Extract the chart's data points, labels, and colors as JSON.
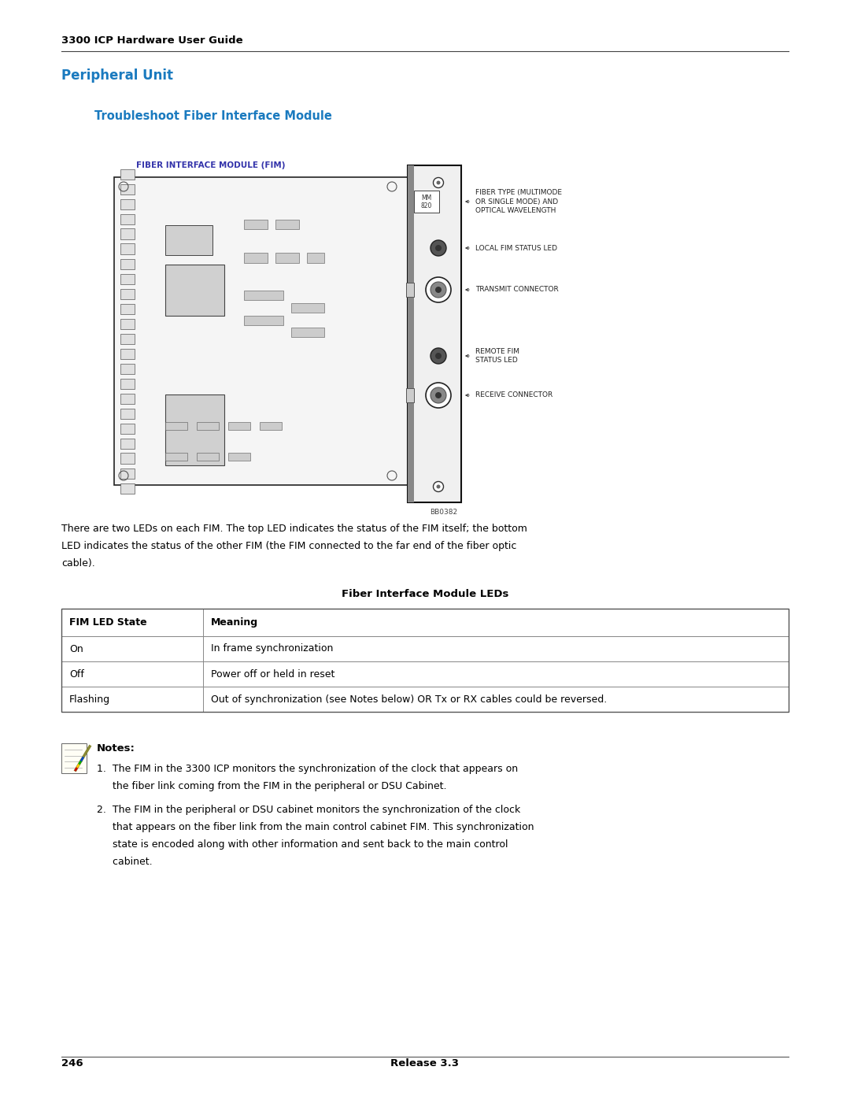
{
  "page_width": 10.8,
  "page_height": 13.97,
  "dpi": 100,
  "bg_color": "#ffffff",
  "header_text": "3300 ICP Hardware User Guide",
  "header_font_size": 9.5,
  "section_title": "Peripheral Unit",
  "section_title_color": "#1a7abf",
  "section_title_fontsize": 12,
  "subsection_title": "Troubleshoot Fiber Interface Module",
  "subsection_title_color": "#1a7abf",
  "subsection_title_fontsize": 10.5,
  "fim_label": "FIBER INTERFACE MODULE (FIM)",
  "fim_label_color": "#3333aa",
  "fim_label_fontsize": 7.5,
  "body_text1_line1": "There are two LEDs on each FIM. The top LED indicates the status of the FIM itself; the bottom",
  "body_text1_line2": "LED indicates the status of the other FIM (the FIM connected to the far end of the fiber optic",
  "body_text1_line3": "cable).",
  "body_fontsize": 9.0,
  "table_title": "Fiber Interface Module LEDs",
  "table_title_fontsize": 9.5,
  "table_header": [
    "FIM LED State",
    "Meaning"
  ],
  "table_rows": [
    [
      "On",
      "In frame synchronization"
    ],
    [
      "Off",
      "Power off or held in reset"
    ],
    [
      "Flashing",
      "Out of synchronization (see Notes below) OR Tx or RX cables could be reversed."
    ]
  ],
  "notes_title": "Notes:",
  "note1_line1": "1.  The FIM in the 3300 ICP monitors the synchronization of the clock that appears on",
  "note1_line2": "     the fiber link coming from the FIM in the peripheral or DSU Cabinet.",
  "note2_line1": "2.  The FIM in the peripheral or DSU cabinet monitors the synchronization of the clock",
  "note2_line2": "     that appears on the fiber link from the main control cabinet FIM. This synchronization",
  "note2_line3": "     state is encoded along with other information and sent back to the main control",
  "note2_line4": "     cabinet.",
  "notes_fontsize": 9.0,
  "footer_page": "246",
  "footer_release": "Release 3.3",
  "footer_fontsize": 9.5,
  "annot_texts": {
    "fiber_type": "FIBER TYPE (MULTIMODE\nOR SINGLE MODE) AND\nOPTICAL WAVELENGTH",
    "local_led": "LOCAL FIM STATUS LED",
    "transmit": "TRANSMIT CONNECTOR",
    "remote_led": "REMOTE FIM\nSTATUS LED",
    "receive": "RECEIVE CONNECTOR"
  }
}
